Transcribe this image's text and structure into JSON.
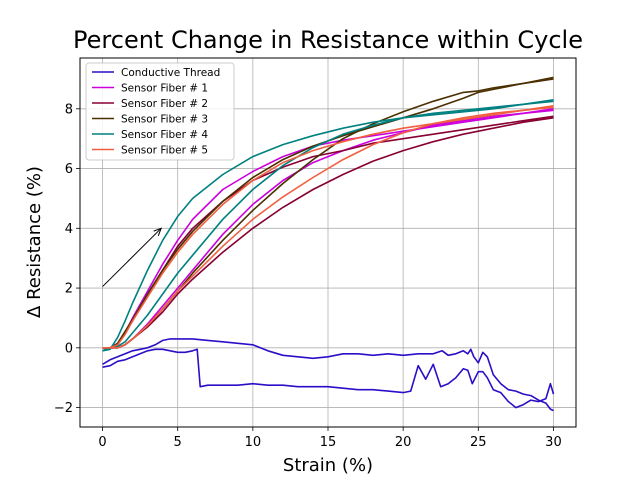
{
  "chart_data": {
    "type": "line",
    "title": "Percent Change in Resistance within Cycle",
    "xlabel": "Strain (%)",
    "ylabel": "Δ Resistance (%)",
    "xlim": [
      -1.5,
      31.5
    ],
    "ylim": [
      -2.65,
      9.7
    ],
    "xticks": [
      0,
      5,
      10,
      15,
      20,
      25,
      30
    ],
    "xtick_labels": [
      "0",
      "5",
      "10",
      "15",
      "20",
      "25",
      "30"
    ],
    "yticks": [
      -2,
      0,
      2,
      4,
      6,
      8
    ],
    "ytick_labels": [
      "−2",
      "0",
      "2",
      "4",
      "6",
      "8"
    ],
    "grid": true,
    "legend_position": "top-left",
    "annotation": {
      "type": "arrow",
      "from": [
        0,
        2.05
      ],
      "to": [
        3.9,
        4.0
      ]
    },
    "series": [
      {
        "name": "Conductive Thread",
        "color": "#2a0fc8",
        "loading": {
          "x": [
            0,
            0.5,
            1,
            1.5,
            2,
            2.5,
            3,
            3.5,
            4,
            4.5,
            5,
            5.5,
            6,
            6.3,
            6.5,
            7,
            8,
            9,
            10,
            11,
            12,
            13,
            14,
            15,
            16,
            17,
            18,
            19,
            20,
            20.5,
            21,
            21.5,
            22,
            22.5,
            23,
            23.5,
            24,
            24.3,
            24.6,
            25,
            25.3,
            25.6,
            26,
            26.5,
            27,
            27.5,
            28,
            28.5,
            29,
            29.5,
            29.8,
            30
          ],
          "y": [
            -0.65,
            -0.6,
            -0.45,
            -0.4,
            -0.3,
            -0.2,
            -0.1,
            -0.05,
            -0.05,
            -0.1,
            -0.15,
            -0.15,
            -0.1,
            -0.05,
            -1.3,
            -1.25,
            -1.25,
            -1.25,
            -1.2,
            -1.25,
            -1.25,
            -1.3,
            -1.3,
            -1.3,
            -1.35,
            -1.4,
            -1.4,
            -1.45,
            -1.5,
            -1.45,
            -0.6,
            -1.05,
            -0.55,
            -1.3,
            -1.2,
            -1.0,
            -0.7,
            -0.75,
            -1.2,
            -0.8,
            -0.8,
            -1.0,
            -1.4,
            -1.5,
            -1.8,
            -2.0,
            -1.9,
            -1.75,
            -1.8,
            -1.7,
            -1.2,
            -1.55
          ]
        },
        "unloading": {
          "x": [
            30,
            29.8,
            29.5,
            29,
            28.5,
            28,
            27.5,
            27,
            26.5,
            26,
            25.6,
            25.3,
            25,
            24.7,
            24.5,
            24.3,
            24,
            23.5,
            23,
            22.6,
            22.3,
            22,
            21,
            20,
            19,
            18,
            17,
            16,
            15,
            14,
            13,
            12,
            11,
            10,
            9,
            8,
            7,
            6,
            5.5,
            5,
            4.5,
            4,
            3.5,
            3,
            2.5,
            2,
            1.5,
            1,
            0.5,
            0
          ],
          "y": [
            -2.1,
            -2.05,
            -1.85,
            -1.75,
            -1.6,
            -1.55,
            -1.45,
            -1.4,
            -1.2,
            -0.9,
            -0.3,
            -0.15,
            -0.5,
            -0.3,
            -0.05,
            -0.2,
            -0.1,
            -0.2,
            -0.25,
            -0.1,
            -0.15,
            -0.2,
            -0.2,
            -0.25,
            -0.2,
            -0.25,
            -0.2,
            -0.2,
            -0.3,
            -0.35,
            -0.3,
            -0.25,
            -0.1,
            0.1,
            0.15,
            0.2,
            0.25,
            0.3,
            0.3,
            0.3,
            0.3,
            0.25,
            0.1,
            0.0,
            -0.05,
            -0.1,
            -0.2,
            -0.3,
            -0.4,
            -0.55
          ]
        }
      },
      {
        "name": "Sensor Fiber # 1",
        "color": "#cc00dd",
        "loading": {
          "x": [
            0,
            1,
            1.5,
            2,
            3,
            4,
            5,
            6,
            8,
            10,
            12,
            14,
            16,
            18,
            20,
            22,
            24,
            26,
            28,
            30
          ],
          "y": [
            0,
            0,
            0.1,
            0.3,
            0.8,
            1.4,
            2.0,
            2.6,
            3.8,
            4.8,
            5.6,
            6.2,
            6.6,
            6.95,
            7.2,
            7.45,
            7.6,
            7.75,
            7.85,
            7.95
          ]
        },
        "unloading": {
          "x": [
            30,
            28,
            26,
            24,
            22,
            20,
            18,
            16,
            14,
            12,
            10,
            8,
            6,
            5,
            4,
            3,
            2,
            1.5,
            1,
            0.5,
            0
          ],
          "y": [
            8.0,
            7.85,
            7.7,
            7.55,
            7.4,
            7.25,
            7.1,
            6.95,
            6.75,
            6.4,
            5.9,
            5.3,
            4.3,
            3.6,
            2.8,
            1.9,
            1.0,
            0.5,
            0.1,
            0.0,
            0.0
          ]
        }
      },
      {
        "name": "Sensor Fiber # 2",
        "color": "#880033",
        "loading": {
          "x": [
            0,
            1,
            1.5,
            2,
            3,
            4,
            5,
            6,
            8,
            10,
            12,
            14,
            16,
            18,
            20,
            22,
            24,
            26,
            28,
            30
          ],
          "y": [
            0,
            0,
            0.1,
            0.3,
            0.7,
            1.2,
            1.8,
            2.3,
            3.2,
            4.0,
            4.7,
            5.3,
            5.8,
            6.25,
            6.6,
            6.9,
            7.15,
            7.35,
            7.55,
            7.7
          ]
        },
        "unloading": {
          "x": [
            30,
            28,
            26,
            24,
            22,
            20,
            18,
            16,
            14,
            12,
            10,
            8,
            6,
            5,
            4,
            3,
            2,
            1.5,
            1,
            0.5,
            0
          ],
          "y": [
            7.75,
            7.6,
            7.45,
            7.3,
            7.15,
            7.0,
            6.85,
            6.6,
            6.4,
            6.05,
            5.6,
            4.9,
            4.0,
            3.4,
            2.6,
            1.8,
            0.9,
            0.5,
            0.1,
            0.0,
            0.0
          ]
        }
      },
      {
        "name": "Sensor Fiber # 3",
        "color": "#4a3000",
        "loading": {
          "x": [
            0,
            1,
            1.5,
            2,
            3,
            4,
            5,
            6,
            8,
            10,
            12,
            14,
            16,
            18,
            20,
            22,
            24,
            25,
            26,
            28,
            30
          ],
          "y": [
            0,
            0,
            0.1,
            0.3,
            0.75,
            1.3,
            1.9,
            2.5,
            3.6,
            4.6,
            5.5,
            6.3,
            7.0,
            7.5,
            7.9,
            8.25,
            8.55,
            8.6,
            8.7,
            8.85,
            9.0
          ]
        },
        "unloading": {
          "x": [
            30,
            28,
            26,
            25,
            24,
            22,
            20,
            18,
            16,
            14,
            12,
            10,
            8,
            6,
            5,
            4,
            3,
            2,
            1.5,
            1,
            0.5,
            0
          ],
          "y": [
            9.05,
            8.85,
            8.65,
            8.55,
            8.35,
            8.0,
            7.7,
            7.4,
            7.1,
            6.75,
            6.3,
            5.7,
            4.9,
            3.9,
            3.3,
            2.6,
            1.8,
            0.95,
            0.55,
            0.15,
            0.0,
            0.0
          ]
        }
      },
      {
        "name": "Sensor Fiber # 4",
        "color": "#008080",
        "loading": {
          "x": [
            0,
            0.5,
            1,
            1.5,
            2,
            3,
            4,
            5,
            6,
            8,
            10,
            12,
            14,
            16,
            18,
            20,
            22,
            24,
            26,
            28,
            30
          ],
          "y": [
            -0.1,
            0,
            0.05,
            0.2,
            0.5,
            1.1,
            1.8,
            2.5,
            3.1,
            4.3,
            5.3,
            6.1,
            6.7,
            7.15,
            7.45,
            7.7,
            7.85,
            7.95,
            8.05,
            8.15,
            8.25
          ]
        },
        "unloading": {
          "x": [
            30,
            28,
            26,
            24,
            22,
            20,
            18,
            16,
            14,
            12,
            10,
            8,
            6,
            5,
            4,
            3,
            2,
            1.5,
            1,
            0.5,
            0
          ],
          "y": [
            8.3,
            8.15,
            8.0,
            7.9,
            7.8,
            7.7,
            7.55,
            7.35,
            7.1,
            6.8,
            6.4,
            5.8,
            5.0,
            4.4,
            3.6,
            2.6,
            1.5,
            0.9,
            0.35,
            -0.05,
            -0.1
          ]
        }
      },
      {
        "name": "Sensor Fiber # 5",
        "color": "#f06040",
        "loading": {
          "x": [
            0,
            1,
            1.5,
            2,
            3,
            4,
            5,
            6,
            8,
            10,
            12,
            14,
            16,
            18,
            20,
            22,
            24,
            26,
            28,
            30
          ],
          "y": [
            0,
            0,
            0.1,
            0.3,
            0.75,
            1.3,
            1.9,
            2.4,
            3.4,
            4.3,
            5.05,
            5.7,
            6.3,
            6.8,
            7.2,
            7.5,
            7.7,
            7.85,
            7.95,
            8.05
          ]
        },
        "unloading": {
          "x": [
            30,
            28,
            26,
            24,
            22,
            20,
            18,
            16,
            14,
            12,
            10,
            8,
            6,
            5,
            4,
            3,
            2,
            1.5,
            1,
            0.5,
            0
          ],
          "y": [
            8.1,
            7.95,
            7.8,
            7.65,
            7.5,
            7.35,
            7.15,
            6.9,
            6.6,
            6.2,
            5.6,
            4.8,
            3.8,
            3.2,
            2.5,
            1.7,
            0.9,
            0.45,
            0.1,
            0.0,
            0.0
          ]
        }
      }
    ]
  }
}
